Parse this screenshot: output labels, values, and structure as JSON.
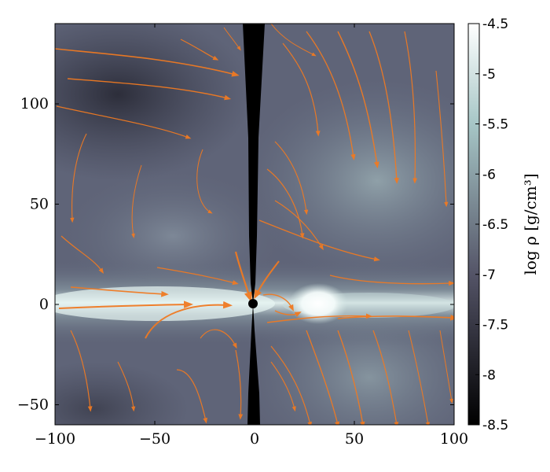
{
  "chart_data": {
    "type": "heatmap",
    "title": "",
    "xlabel": "",
    "ylabel": "",
    "xlim": [
      -100,
      100
    ],
    "ylim": [
      -60,
      140
    ],
    "x_ticks": [
      -100,
      -50,
      0,
      50,
      100
    ],
    "y_ticks": [
      -50,
      0,
      50,
      100
    ],
    "x_tick_labels": [
      "−100",
      "−50",
      "0",
      "50",
      "100"
    ],
    "y_tick_labels": [
      "−50",
      "0",
      "50",
      "100"
    ],
    "colorbar": {
      "label": "log ρ [g/cm³]",
      "min": -8.5,
      "max": -4.5,
      "ticks": [
        -4.5,
        -5,
        -5.5,
        -6,
        -6.5,
        -7,
        -7.5,
        -8,
        -8.5
      ],
      "tick_labels": [
        "-4.5",
        "-5",
        "-5.5",
        "-6",
        "-6.5",
        "-7",
        "-7.5",
        "-8",
        "-8.5"
      ],
      "colormap": "bone"
    },
    "central_object": {
      "x": 0,
      "y": 0,
      "color": "#000000"
    },
    "polar_funnel": {
      "color": "#000000"
    },
    "bright_blob": {
      "x": 33,
      "y": 0
    },
    "streamline_color": "#f07a22",
    "grid": false
  }
}
